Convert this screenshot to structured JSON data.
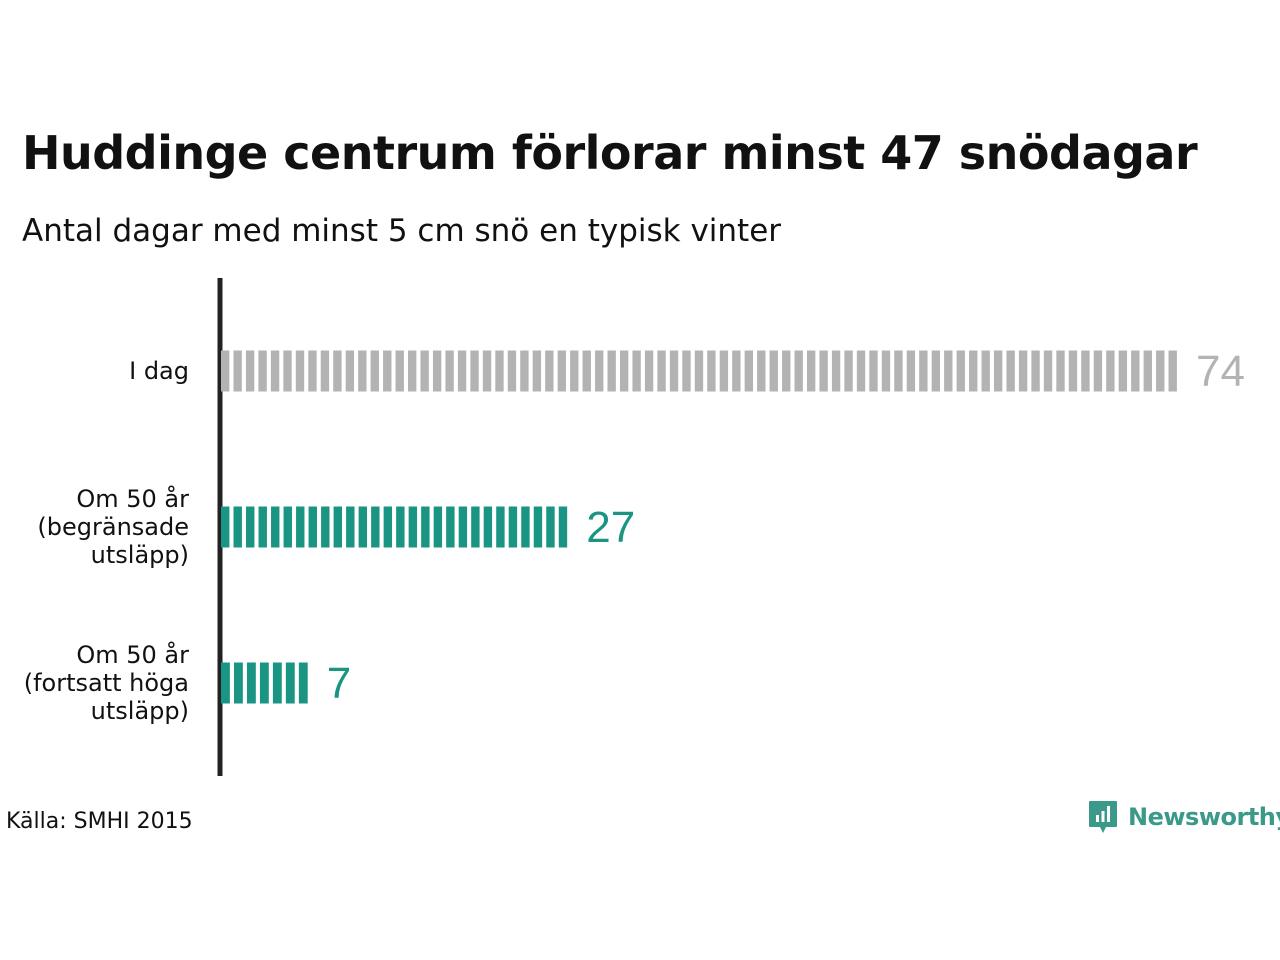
{
  "chart_data": {
    "type": "bar",
    "orientation": "horizontal",
    "title": "Huddinge centrum förlorar minst 47 snödagar",
    "subtitle": "Antal dagar med minst 5 cm snö en typisk vinter",
    "categories": [
      [
        "I dag"
      ],
      [
        "Om 50 år",
        "(begränsade",
        "utsläpp)"
      ],
      [
        "Om 50 år",
        "(fortsatt höga",
        "utsläpp)"
      ]
    ],
    "values": [
      74,
      27,
      7
    ],
    "value_labels": [
      "74",
      "27",
      "7"
    ],
    "bar_colors": [
      "#b3b3b3",
      "#1b9583",
      "#1b9583"
    ],
    "value_label_colors": [
      "#b3b3b3",
      "#1b9583",
      "#1b9583"
    ],
    "bar_style": "segmented",
    "xlim": [
      0,
      74
    ],
    "grid": false,
    "legend": "none"
  },
  "source": "Källa: SMHI 2015",
  "logo": {
    "text": "Newsworthy",
    "icon": "newsworthy-logo-icon",
    "color": "#3a9988"
  }
}
